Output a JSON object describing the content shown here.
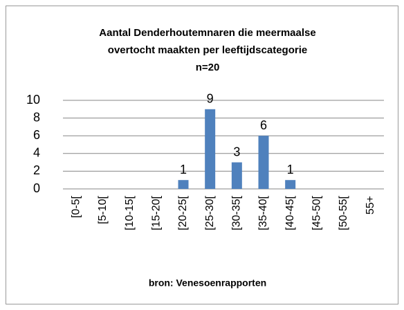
{
  "chart_data": {
    "type": "bar",
    "title": [
      "Aantal Denderhoutemnaren die  meermaalse",
      "overtocht maakten per leeftijdscategorie"
    ],
    "subtitle": "n=20",
    "x_label": "bron: Venesoenrapporten",
    "categories": [
      "[0-5[",
      "[5-10[",
      "[10-15[",
      "[15-20[",
      "[20-25[",
      "[25-30[",
      "[30-35[",
      "[35-40[",
      "[40-45[",
      "[45-50[",
      "[50-55[",
      "55+"
    ],
    "values": [
      0,
      0,
      0,
      0,
      1,
      9,
      3,
      6,
      1,
      0,
      0,
      0
    ],
    "color": "#4f81bd",
    "ylim": [
      0,
      10
    ],
    "yticks": [
      0,
      2,
      4,
      6,
      8,
      10
    ],
    "grid": true
  }
}
